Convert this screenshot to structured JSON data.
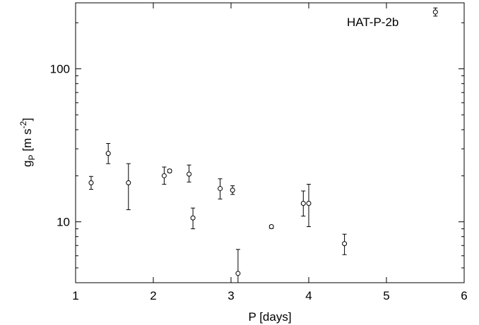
{
  "chart_data": {
    "type": "scatter",
    "title": "",
    "xlabel": "P [days]",
    "ylabel_main": "g",
    "ylabel_sub": "P",
    "ylabel_units_pre": " [m s",
    "ylabel_units_sup": "-2",
    "ylabel_units_post": "]",
    "xlim": [
      1,
      6
    ],
    "ylim": [
      4,
      270
    ],
    "yscale": "log",
    "grid": false,
    "xticks": [
      1,
      2,
      3,
      4,
      5,
      6
    ],
    "xtick_labels": [
      "1",
      "2",
      "3",
      "4",
      "5",
      "6"
    ],
    "yticks_major": [
      10,
      100
    ],
    "ytick_labels": [
      "10",
      "100"
    ],
    "annotation": "HAT-P-2b",
    "series": [
      {
        "points": [
          {
            "x": 1.2,
            "y": 18.0,
            "ylo": 16.3,
            "yhi": 19.8
          },
          {
            "x": 1.42,
            "y": 28.0,
            "ylo": 24.0,
            "yhi": 32.5
          },
          {
            "x": 1.68,
            "y": 18.0,
            "ylo": 12.0,
            "yhi": 24.0
          },
          {
            "x": 2.14,
            "y": 20.0,
            "ylo": 17.6,
            "yhi": 22.8
          },
          {
            "x": 2.21,
            "y": 21.5,
            "ylo": 21.0,
            "yhi": 22.0
          },
          {
            "x": 2.46,
            "y": 20.5,
            "ylo": 18.2,
            "yhi": 23.5
          },
          {
            "x": 2.51,
            "y": 10.6,
            "ylo": 9.0,
            "yhi": 12.3
          },
          {
            "x": 2.86,
            "y": 16.5,
            "ylo": 14.1,
            "yhi": 19.1
          },
          {
            "x": 3.02,
            "y": 16.1,
            "ylo": 15.1,
            "yhi": 17.2
          },
          {
            "x": 3.09,
            "y": 4.6,
            "ylo": 4.0,
            "yhi": 6.6
          },
          {
            "x": 3.52,
            "y": 9.3,
            "ylo": 9.05,
            "yhi": 9.5
          },
          {
            "x": 3.93,
            "y": 13.2,
            "ylo": 10.9,
            "yhi": 15.9
          },
          {
            "x": 4.0,
            "y": 13.2,
            "ylo": 9.3,
            "yhi": 17.6
          },
          {
            "x": 4.46,
            "y": 7.2,
            "ylo": 6.1,
            "yhi": 8.3
          },
          {
            "x": 5.63,
            "y": 235,
            "ylo": 221,
            "yhi": 250
          }
        ]
      }
    ]
  }
}
